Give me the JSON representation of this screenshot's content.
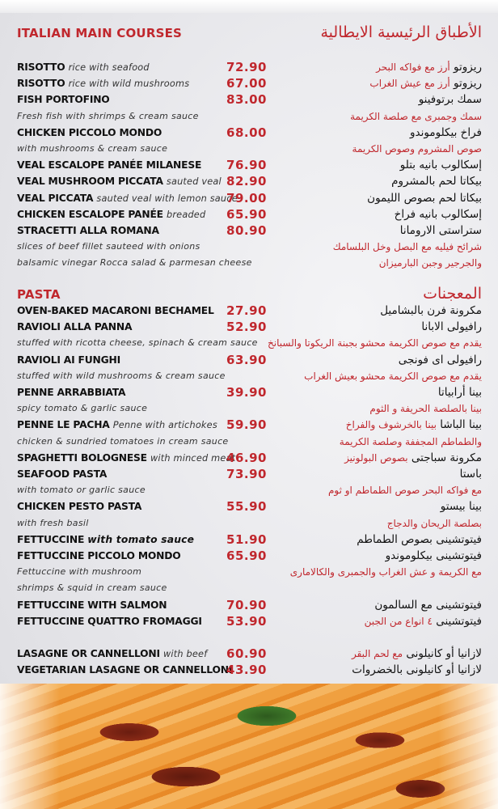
{
  "main_courses": {
    "title_en": "ITALIAN MAIN COURSES",
    "title_ar": "الأطباق الرئيسية الايطالية",
    "rows": [
      {
        "name": "RISOTTO",
        "sub": "rice with seafood",
        "price": "72.90",
        "ar": "ريزوتو",
        "ar_sub": "أرز مع فواكه البحر"
      },
      {
        "name": "RISOTTO",
        "sub": "rice with wild mushrooms",
        "price": "67.00",
        "ar": "ريزوتو",
        "ar_sub": "أرز مع عيش الغراب"
      },
      {
        "name": "FISH PORTOFINO",
        "price": "83.00",
        "ar": "سمك برتوفينو"
      },
      {
        "desc": "Fresh fish with shrimps & cream sauce",
        "ar_desc": "سمك وجمبرى مع صلصة الكريمة"
      },
      {
        "name": "CHICKEN PICCOLO MONDO",
        "price": "68.00",
        "ar": "فراخ بيكلوموندو"
      },
      {
        "desc": "with mushrooms & cream sauce",
        "ar_desc": "صوص المشروم وصوص الكريمة"
      },
      {
        "name": "VEAL ESCALOPE PANÉE MILANESE",
        "price": "76.90",
        "ar": "إسكالوب بانيه بتلو"
      },
      {
        "name": "VEAL MUSHROOM PICCATA",
        "sub": "sauted veal",
        "price": "82.90",
        "ar": "بيكاتا لحم بالمشروم"
      },
      {
        "name": "VEAL PICCATA",
        "sub": "sauted veal with lemon sauce",
        "price": "79.00",
        "ar": "بيكاتا لحم بصوص الليمون"
      },
      {
        "name": "CHICKEN ESCALOPE PANÉE",
        "sub": "breaded",
        "price": "65.90",
        "ar": "إسكالوب بانيه فراخ"
      },
      {
        "name": "STRACETTI ALLA ROMANA",
        "price": "80.90",
        "ar": "ستراستى الارومانا"
      },
      {
        "desc": "slices of beef fillet sauteed with onions",
        "ar_desc": "شرائح فيليه مع البصل وخل البلسامك"
      },
      {
        "desc": "balsamic vinegar Rocca salad & parmesan cheese",
        "ar_desc": "والجرجير وجبن البارميزان"
      }
    ]
  },
  "pasta": {
    "title_en": "PASTA",
    "title_ar": "المعجنات",
    "rows": [
      {
        "name": "OVEN-BAKED MACARONI BECHAMEL",
        "price": "27.90",
        "ar": "مكرونة فرن بالبشاميل"
      },
      {
        "name": "RAVIOLI ALLA PANNA",
        "price": "52.90",
        "ar": "رافيولى الابانا"
      },
      {
        "desc": "stuffed with ricotta cheese, spinach & cream sauce",
        "ar_desc": "يقدم مع صوص الكريمة محشو بجبنة الريكوتا والسبانخ"
      },
      {
        "name": "RAVIOLI AI FUNGHI",
        "price": "63.90",
        "ar": "رافيولى اى فونجى"
      },
      {
        "desc": "stuffed with wild mushrooms & cream sauce",
        "ar_desc": "يقدم مع صوص الكريمة محشو بعيش الغراب"
      },
      {
        "name": "PENNE ARRABBIATA",
        "price": "39.90",
        "ar": "بينا أرابياتا"
      },
      {
        "desc": "spicy tomato & garlic sauce",
        "ar_desc": "بينا بالصلصة الحريفة و الثوم"
      },
      {
        "name": "PENNE LE PACHA",
        "sub": "Penne with artichokes",
        "price": "59.90",
        "ar": "بينا الباشا",
        "ar_sub": "بينا بالخرشوف والفراخ"
      },
      {
        "desc": "chicken & sundried tomatoes in cream sauce",
        "ar_desc": "والطماطم المجففة وصلصة الكريمة"
      },
      {
        "name": "SPAGHETTI BOLOGNESE",
        "sub": "with minced meat",
        "price": "46.90",
        "ar": "مكرونة سباجتى",
        "ar_sub": "بصوص البولونيز"
      },
      {
        "name": "SEAFOOD PASTA",
        "price": "73.90",
        "ar": "باستا"
      },
      {
        "desc": "with tomato or garlic sauce",
        "ar_desc": "مع فواكه البحر  صوص الطماطم او ثوم"
      },
      {
        "name": "CHICKEN PESTO PASTA",
        "price": "55.90",
        "ar": "بينا بيستو"
      },
      {
        "desc": "with fresh basil",
        "ar_desc": "بصلصة الريحان والدجاج"
      },
      {
        "name": "FETTUCCINE",
        "sub_bold": "with tomato sauce",
        "price": "51.90",
        "ar": "فيتوتشينى بصوص الطماطم"
      },
      {
        "name": "FETTUCCINE PICCOLO MONDO",
        "price": "65.90",
        "ar": "فيتوتشينى بيكلوموندو"
      },
      {
        "desc": "Fettuccine with mushroom",
        "ar_desc": "مع الكريمة و عش الغراب والجمبرى والكالامارى"
      },
      {
        "desc": " shrimps & squid in cream sauce"
      },
      {
        "name": "FETTUCCINE WITH SALMON",
        "price": "70.90",
        "ar": "فيتوتشينى مع السالمون"
      },
      {
        "name": "FETTUCCINE QUATTRO FROMAGGI",
        "price": "53.90",
        "ar": "فيتوتشينى",
        "ar_sub": "٤ انواع من الجبن"
      },
      {},
      {
        "name": "LASAGNE OR CANNELLONI",
        "sub": "with beef",
        "price": "60.90",
        "ar": "لازانيا  أو كانيلونى",
        "ar_sub": "مع لحم البقر"
      },
      {
        "name": "VEGETARIAN LASAGNE OR CANNELLONI",
        "price": "43.90",
        "ar": "لازانيا أو كانيلونى بالخضروات"
      }
    ]
  },
  "colors": {
    "accent": "#c0272d",
    "text": "#111111"
  }
}
